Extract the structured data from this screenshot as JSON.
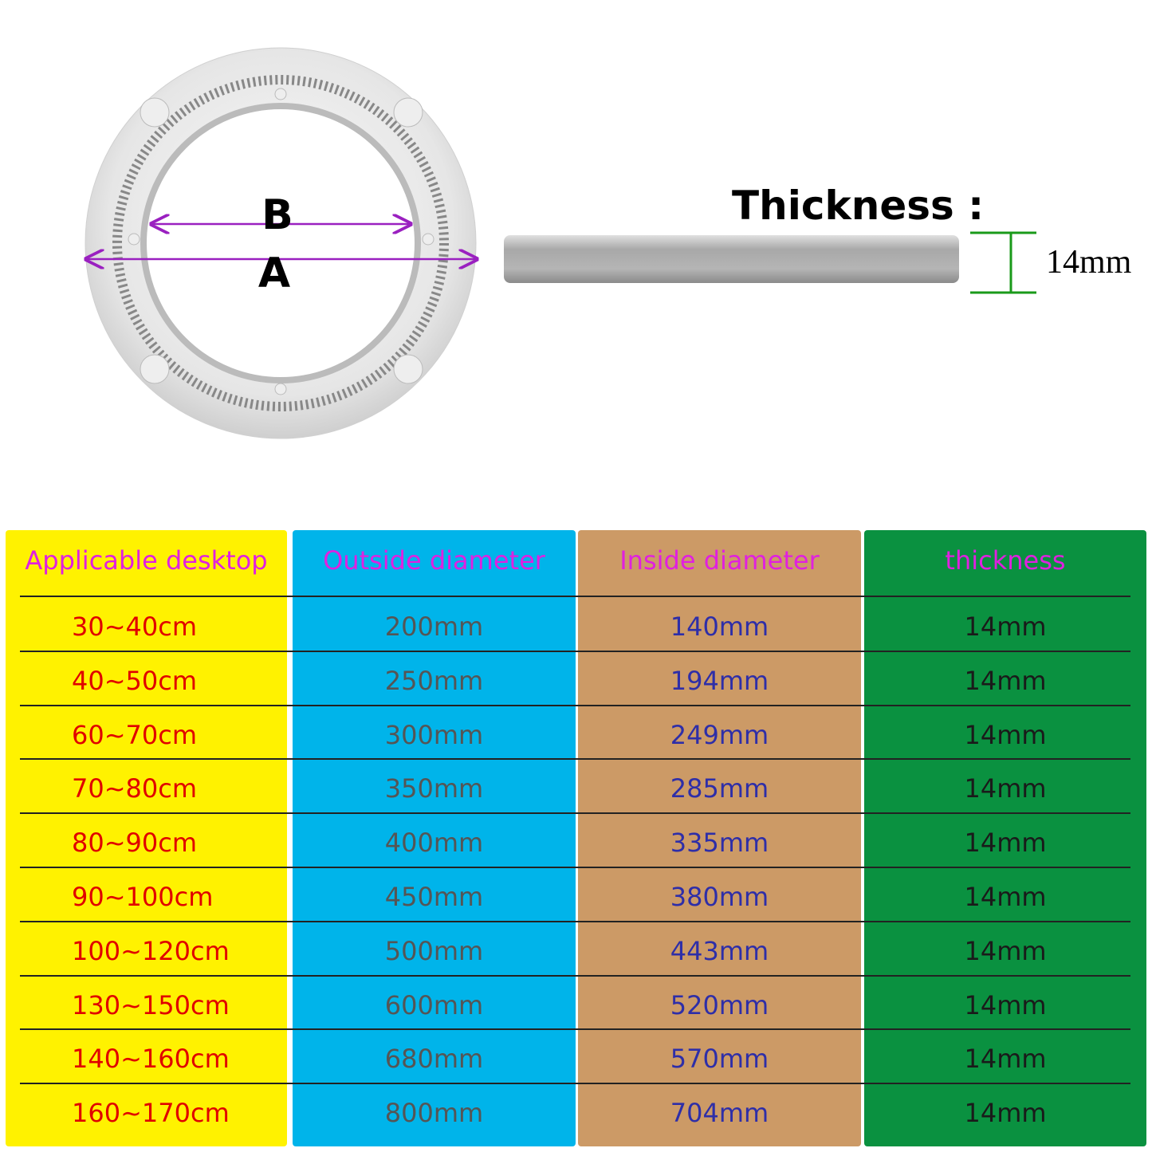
{
  "diagram": {
    "label_b": "B",
    "label_a": "A",
    "thickness_label": "Thickness :",
    "thickness_value": "14mm"
  },
  "table": {
    "header": [
      "Applicable desktop",
      "Outside diameter",
      "Inside diameter",
      "thickness"
    ],
    "rows": [
      [
        "30~40cm",
        "200mm",
        "140mm",
        "14mm"
      ],
      [
        "40~50cm",
        "250mm",
        "194mm",
        "14mm"
      ],
      [
        "60~70cm",
        "300mm",
        "249mm",
        "14mm"
      ],
      [
        "70~80cm",
        "350mm",
        "285mm",
        "14mm"
      ],
      [
        "80~90cm",
        "400mm",
        "335mm",
        "14mm"
      ],
      [
        "90~100cm",
        "450mm",
        "380mm",
        "14mm"
      ],
      [
        "100~120cm",
        "500mm",
        "443mm",
        "14mm"
      ],
      [
        "130~150cm",
        "600mm",
        "520mm",
        "14mm"
      ],
      [
        "140~160cm",
        "680mm",
        "570mm",
        "14mm"
      ],
      [
        "160~170cm",
        "800mm",
        "704mm",
        "14mm"
      ]
    ]
  }
}
